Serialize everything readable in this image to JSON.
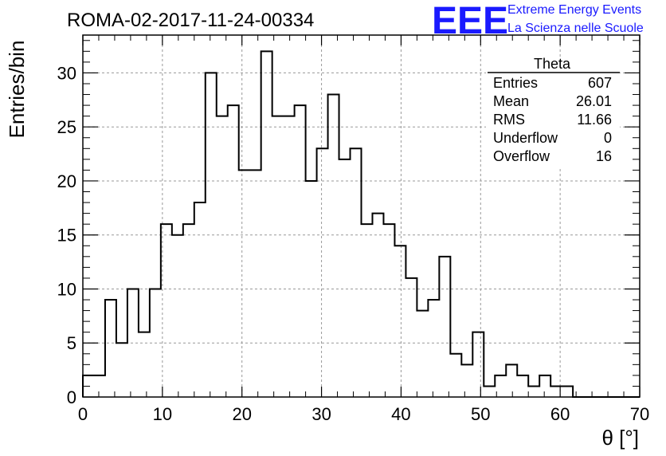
{
  "header": {
    "title": "ROMA-02-2017-11-24-00334",
    "logo_text": "EEE",
    "logo_line1": "Extreme Energy Events",
    "logo_line2": "La Scienza nelle Scuole"
  },
  "stats": {
    "name": "Theta",
    "rows": [
      {
        "label": "Entries",
        "value": "607"
      },
      {
        "label": "Mean",
        "value": "26.01"
      },
      {
        "label": "RMS",
        "value": "11.66"
      },
      {
        "label": "Underflow",
        "value": "0"
      },
      {
        "label": "Overflow",
        "value": "16"
      }
    ]
  },
  "chart_data": {
    "type": "bar",
    "subtype": "histogram",
    "title": "ROMA-02-2017-11-24-00334",
    "xlabel": "θ [°]",
    "ylabel": "Entries/bin",
    "xlim": [
      0,
      70
    ],
    "ylim": [
      0,
      33.5
    ],
    "x_ticks": [
      0,
      10,
      20,
      30,
      40,
      50,
      60,
      70
    ],
    "y_ticks": [
      0,
      5,
      10,
      15,
      20,
      25,
      30
    ],
    "grid": true,
    "bin_width": 1.4,
    "bin_edges_start": 0,
    "values": [
      2,
      2,
      9,
      5,
      10,
      6,
      10,
      16,
      15,
      16,
      18,
      30,
      26,
      27,
      21,
      21,
      32,
      26,
      26,
      27,
      20,
      23,
      28,
      22,
      23,
      16,
      17,
      16,
      14,
      11,
      8,
      9,
      13,
      4,
      3,
      6,
      1,
      2,
      3,
      2,
      1,
      2,
      1,
      1,
      0,
      0,
      0,
      0,
      0,
      0
    ],
    "colors": {
      "line": "#000000",
      "grid": "#999999",
      "logo": "#1a1aff"
    }
  }
}
